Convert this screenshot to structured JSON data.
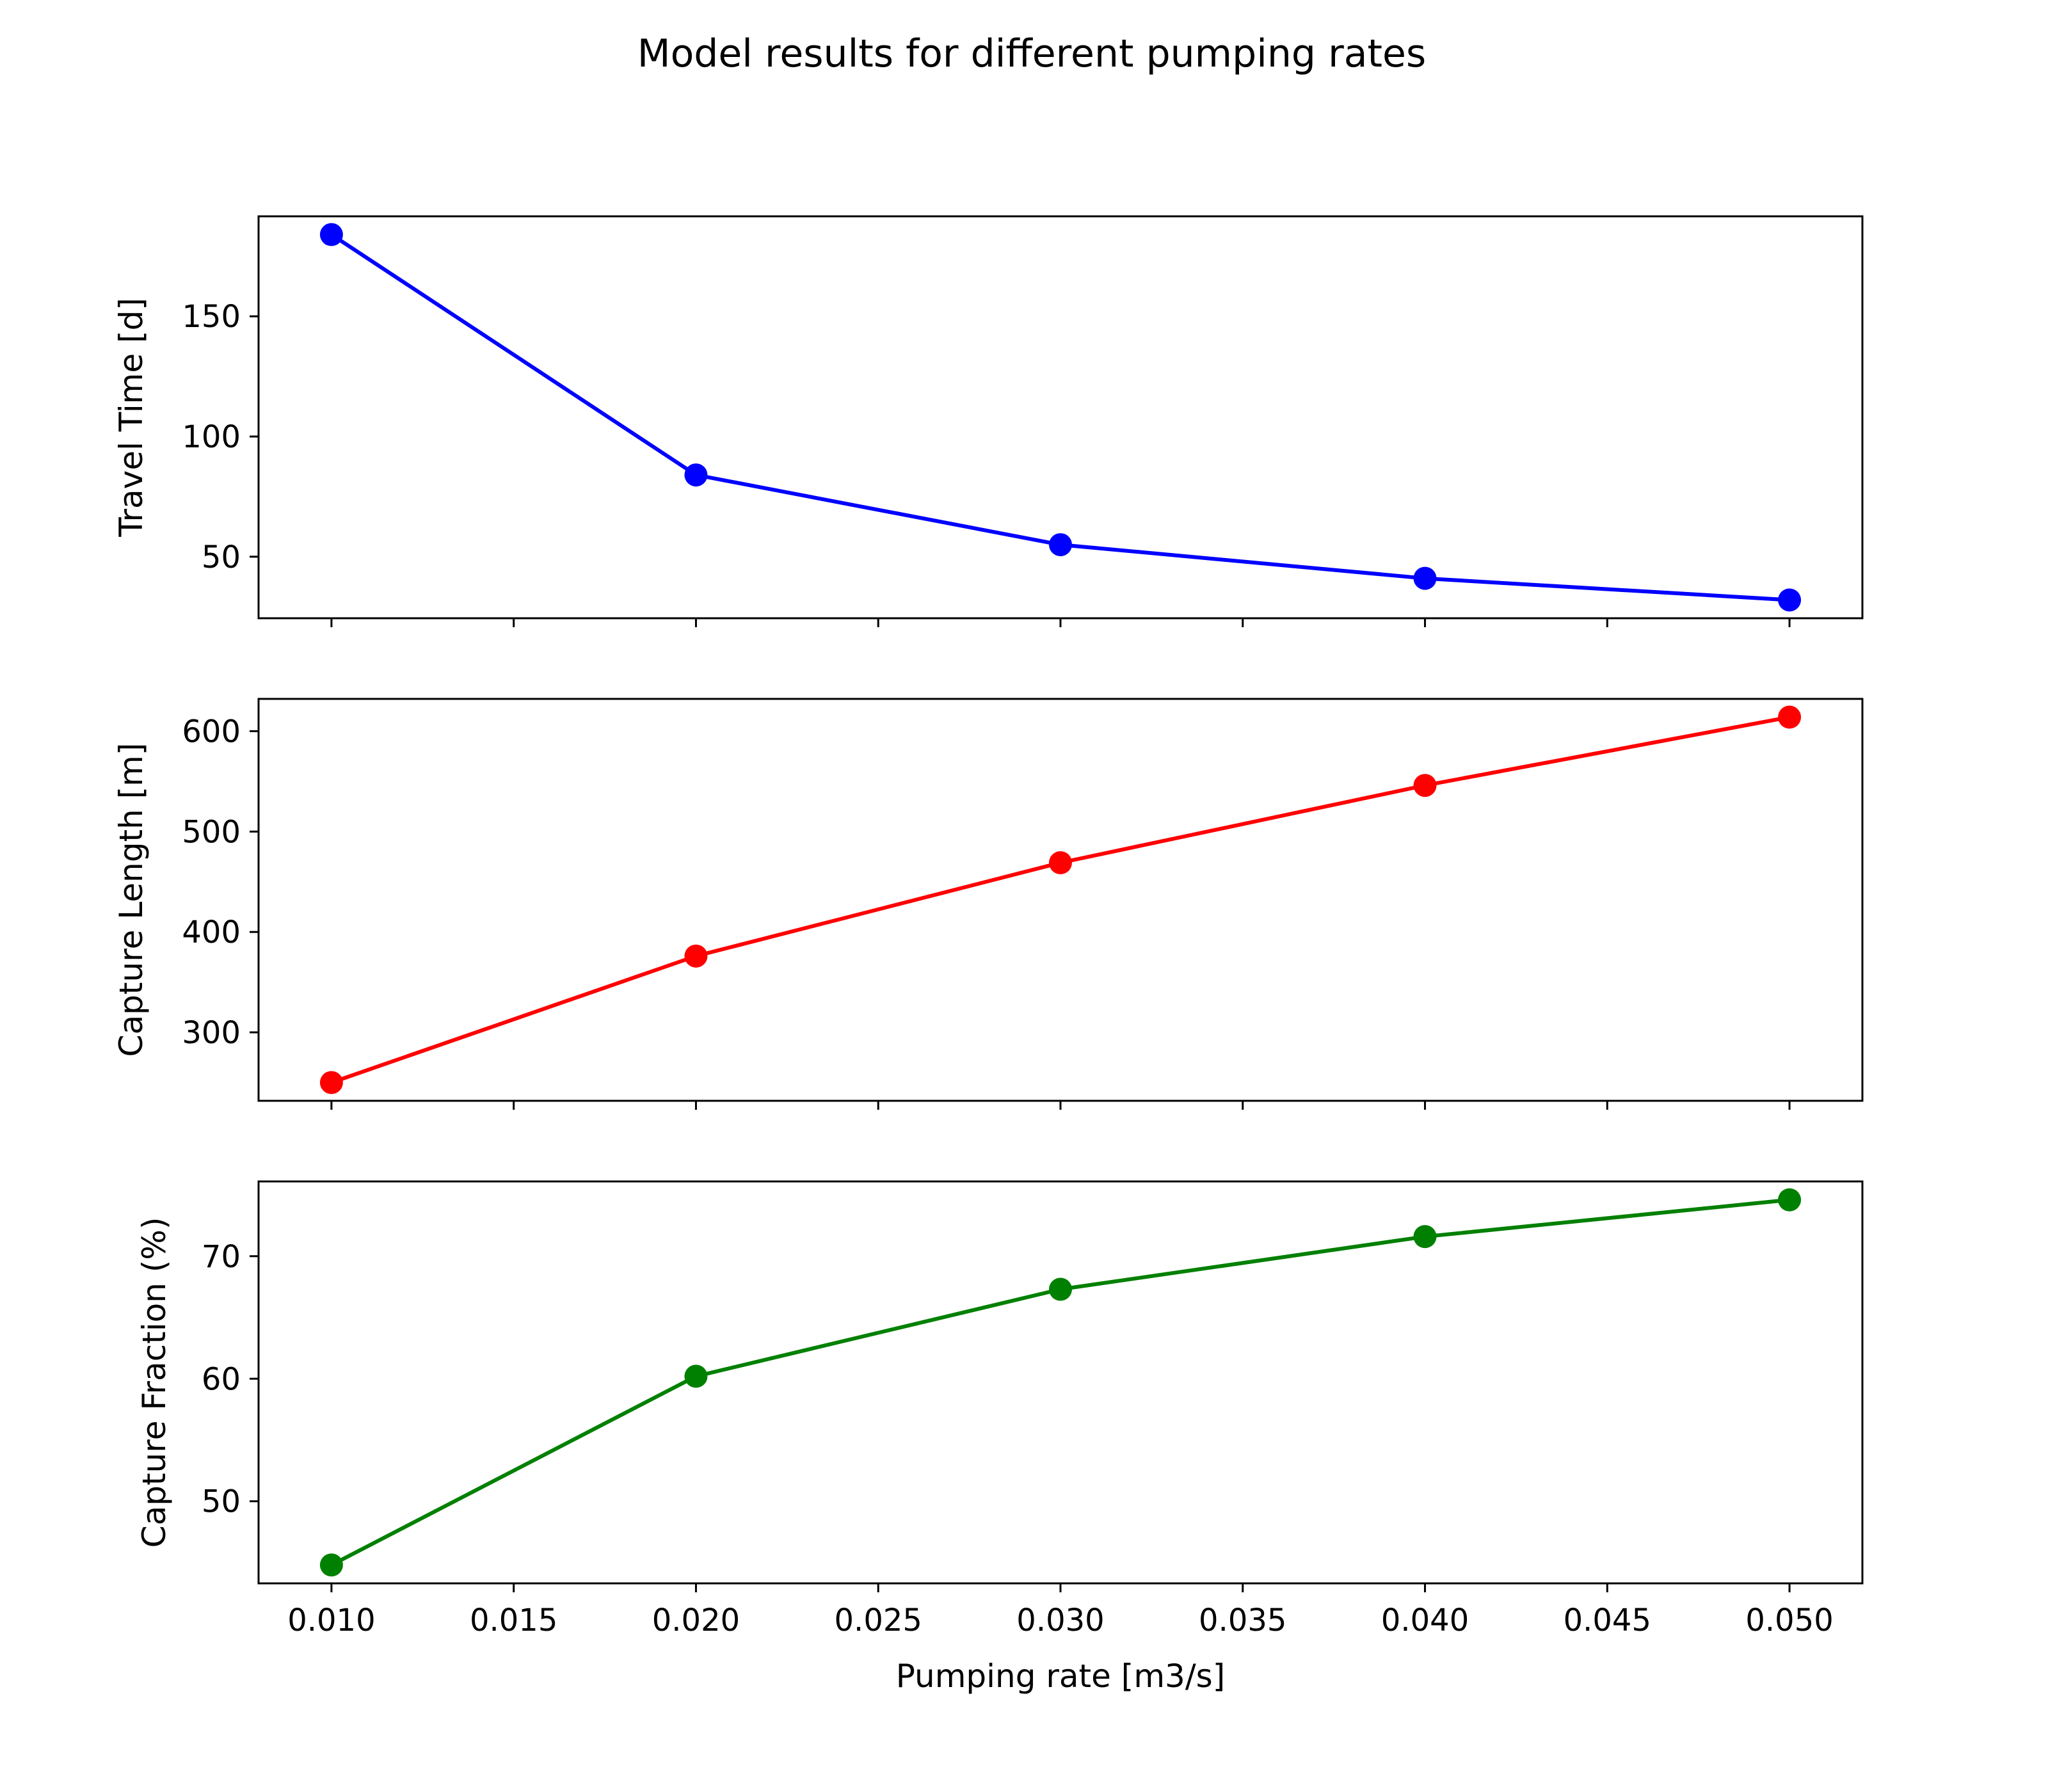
{
  "figure": {
    "title": "Model results for different pumping rates"
  },
  "chart_data": [
    {
      "type": "line",
      "title": "",
      "xlabel": "",
      "ylabel": "Travel Time [d]",
      "x": [
        0.01,
        0.02,
        0.03,
        0.04,
        0.05
      ],
      "series": [
        {
          "color": "#0000ff",
          "values": [
            184,
            84,
            55,
            41,
            32
          ]
        }
      ],
      "xlim": [
        0.008,
        0.052
      ],
      "ylim": [
        24.4,
        191.6
      ],
      "xticks": [
        0.01,
        0.015,
        0.02,
        0.025,
        0.03,
        0.035,
        0.04,
        0.045,
        0.05
      ],
      "xtick_labels": [
        "",
        "",
        "",
        "",
        "",
        "",
        "",
        "",
        ""
      ],
      "yticks": [
        50,
        100,
        150
      ],
      "ytick_labels": [
        "50",
        "100",
        "150"
      ],
      "grid": false,
      "marker": "circle"
    },
    {
      "type": "line",
      "title": "",
      "xlabel": "",
      "ylabel": "Capture Length [m]",
      "x": [
        0.01,
        0.02,
        0.03,
        0.04,
        0.05
      ],
      "series": [
        {
          "color": "#ff0000",
          "values": [
            250,
            376,
            469,
            546,
            614
          ]
        }
      ],
      "xlim": [
        0.008,
        0.052
      ],
      "ylim": [
        231.8,
        632.2
      ],
      "xticks": [
        0.01,
        0.015,
        0.02,
        0.025,
        0.03,
        0.035,
        0.04,
        0.045,
        0.05
      ],
      "xtick_labels": [
        "",
        "",
        "",
        "",
        "",
        "",
        "",
        "",
        ""
      ],
      "yticks": [
        300,
        400,
        500,
        600
      ],
      "ytick_labels": [
        "300",
        "400",
        "500",
        "600"
      ],
      "grid": false,
      "marker": "circle"
    },
    {
      "type": "line",
      "title": "",
      "xlabel": "Pumping rate [m3/s]",
      "ylabel": "Capture Fraction (%)",
      "x": [
        0.01,
        0.02,
        0.03,
        0.04,
        0.05
      ],
      "series": [
        {
          "color": "#008000",
          "values": [
            44.8,
            60.2,
            67.3,
            71.6,
            74.6
          ]
        }
      ],
      "xlim": [
        0.008,
        0.052
      ],
      "ylim": [
        43.3,
        76.1
      ],
      "xticks": [
        0.01,
        0.015,
        0.02,
        0.025,
        0.03,
        0.035,
        0.04,
        0.045,
        0.05
      ],
      "xtick_labels": [
        "0.010",
        "0.015",
        "0.020",
        "0.025",
        "0.030",
        "0.035",
        "0.040",
        "0.045",
        "0.050"
      ],
      "yticks": [
        50,
        60,
        70
      ],
      "ytick_labels": [
        "50",
        "60",
        "70"
      ],
      "grid": false,
      "marker": "circle"
    }
  ]
}
